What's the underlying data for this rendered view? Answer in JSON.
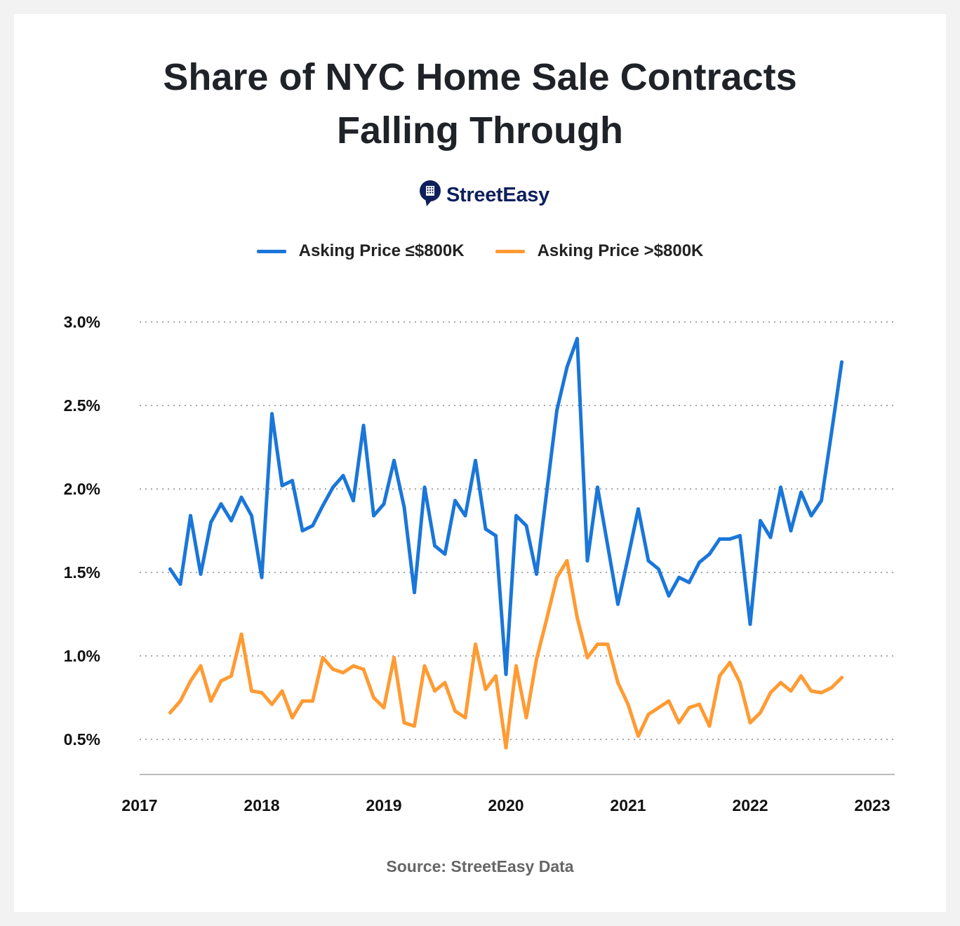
{
  "title_lines": [
    "Share of NYC Home Sale Contracts",
    "Falling Through"
  ],
  "logo": {
    "text": "StreetEasy",
    "color": "#0e1f5b",
    "icon": "building-pin-icon"
  },
  "source": "Source: StreetEasy Data",
  "chart_data": {
    "type": "line",
    "title": "Share of NYC Home Sale Contracts Falling Through",
    "xlabel": "",
    "ylabel": "",
    "x_ticks": [
      "2017",
      "2018",
      "2019",
      "2020",
      "2021",
      "2022",
      "2023"
    ],
    "y_ticks": [
      "0.5%",
      "1.0%",
      "1.5%",
      "2.0%",
      "2.5%",
      "3.0%"
    ],
    "y_tick_values": [
      0.5,
      1.0,
      1.5,
      2.0,
      2.5,
      3.0
    ],
    "ylim": [
      0.29,
      3.0
    ],
    "xlim": [
      "2017-01",
      "2023-01"
    ],
    "grid": "horizontal dotted",
    "legend": "top-center",
    "x": [
      "2017-04",
      "2017-05",
      "2017-06",
      "2017-07",
      "2017-08",
      "2017-09",
      "2017-10",
      "2017-11",
      "2017-12",
      "2018-01",
      "2018-02",
      "2018-03",
      "2018-04",
      "2018-05",
      "2018-06",
      "2018-07",
      "2018-08",
      "2018-09",
      "2018-10",
      "2018-11",
      "2018-12",
      "2019-01",
      "2019-02",
      "2019-03",
      "2019-04",
      "2019-05",
      "2019-06",
      "2019-07",
      "2019-08",
      "2019-09",
      "2019-10",
      "2019-11",
      "2019-12",
      "2020-01",
      "2020-02",
      "2020-03",
      "2020-04",
      "2020-05",
      "2020-06",
      "2020-07",
      "2020-08",
      "2020-09",
      "2020-10",
      "2020-11",
      "2020-12",
      "2021-01",
      "2021-02",
      "2021-03",
      "2021-04",
      "2021-05",
      "2021-06",
      "2021-07",
      "2021-08",
      "2021-09",
      "2021-10",
      "2021-11",
      "2021-12",
      "2022-01",
      "2022-02",
      "2022-03",
      "2022-04",
      "2022-05",
      "2022-06",
      "2022-07",
      "2022-08",
      "2022-09",
      "2022-10"
    ],
    "series": [
      {
        "name": "Asking Price ≤$800K",
        "color": "#1a76d9",
        "values": [
          1.52,
          1.43,
          1.84,
          1.49,
          1.8,
          1.91,
          1.81,
          1.95,
          1.84,
          1.47,
          2.45,
          2.02,
          2.05,
          1.75,
          1.78,
          1.9,
          2.01,
          2.08,
          1.93,
          2.38,
          1.84,
          1.91,
          2.17,
          1.89,
          1.38,
          2.01,
          1.66,
          1.61,
          1.93,
          1.84,
          2.17,
          1.76,
          1.72,
          0.89,
          1.84,
          1.78,
          1.49,
          1.98,
          2.47,
          2.73,
          2.9,
          1.57,
          2.01,
          1.66,
          1.31,
          1.59,
          1.88,
          1.57,
          1.52,
          1.36,
          1.47,
          1.44,
          1.56,
          1.61,
          1.7,
          1.7,
          1.72,
          1.19,
          1.81,
          1.71,
          2.01,
          1.75,
          1.98,
          1.84,
          1.93,
          2.34,
          2.76
        ]
      },
      {
        "name": "Asking Price >$800K",
        "color": "#ff9b33",
        "values": [
          0.66,
          0.73,
          0.85,
          0.94,
          0.73,
          0.85,
          0.88,
          1.13,
          0.79,
          0.78,
          0.71,
          0.79,
          0.63,
          0.73,
          0.73,
          0.99,
          0.92,
          0.9,
          0.94,
          0.92,
          0.75,
          0.69,
          0.99,
          0.6,
          0.58,
          0.94,
          0.79,
          0.84,
          0.67,
          0.63,
          1.07,
          0.8,
          0.88,
          0.45,
          0.94,
          0.63,
          0.98,
          1.22,
          1.47,
          1.57,
          1.23,
          0.99,
          1.07,
          1.07,
          0.84,
          0.71,
          0.52,
          0.65,
          0.69,
          0.73,
          0.6,
          0.69,
          0.71,
          0.58,
          0.88,
          0.96,
          0.84,
          0.6,
          0.66,
          0.78,
          0.84,
          0.79,
          0.88,
          0.79,
          0.78,
          0.81,
          0.87
        ]
      }
    ]
  }
}
